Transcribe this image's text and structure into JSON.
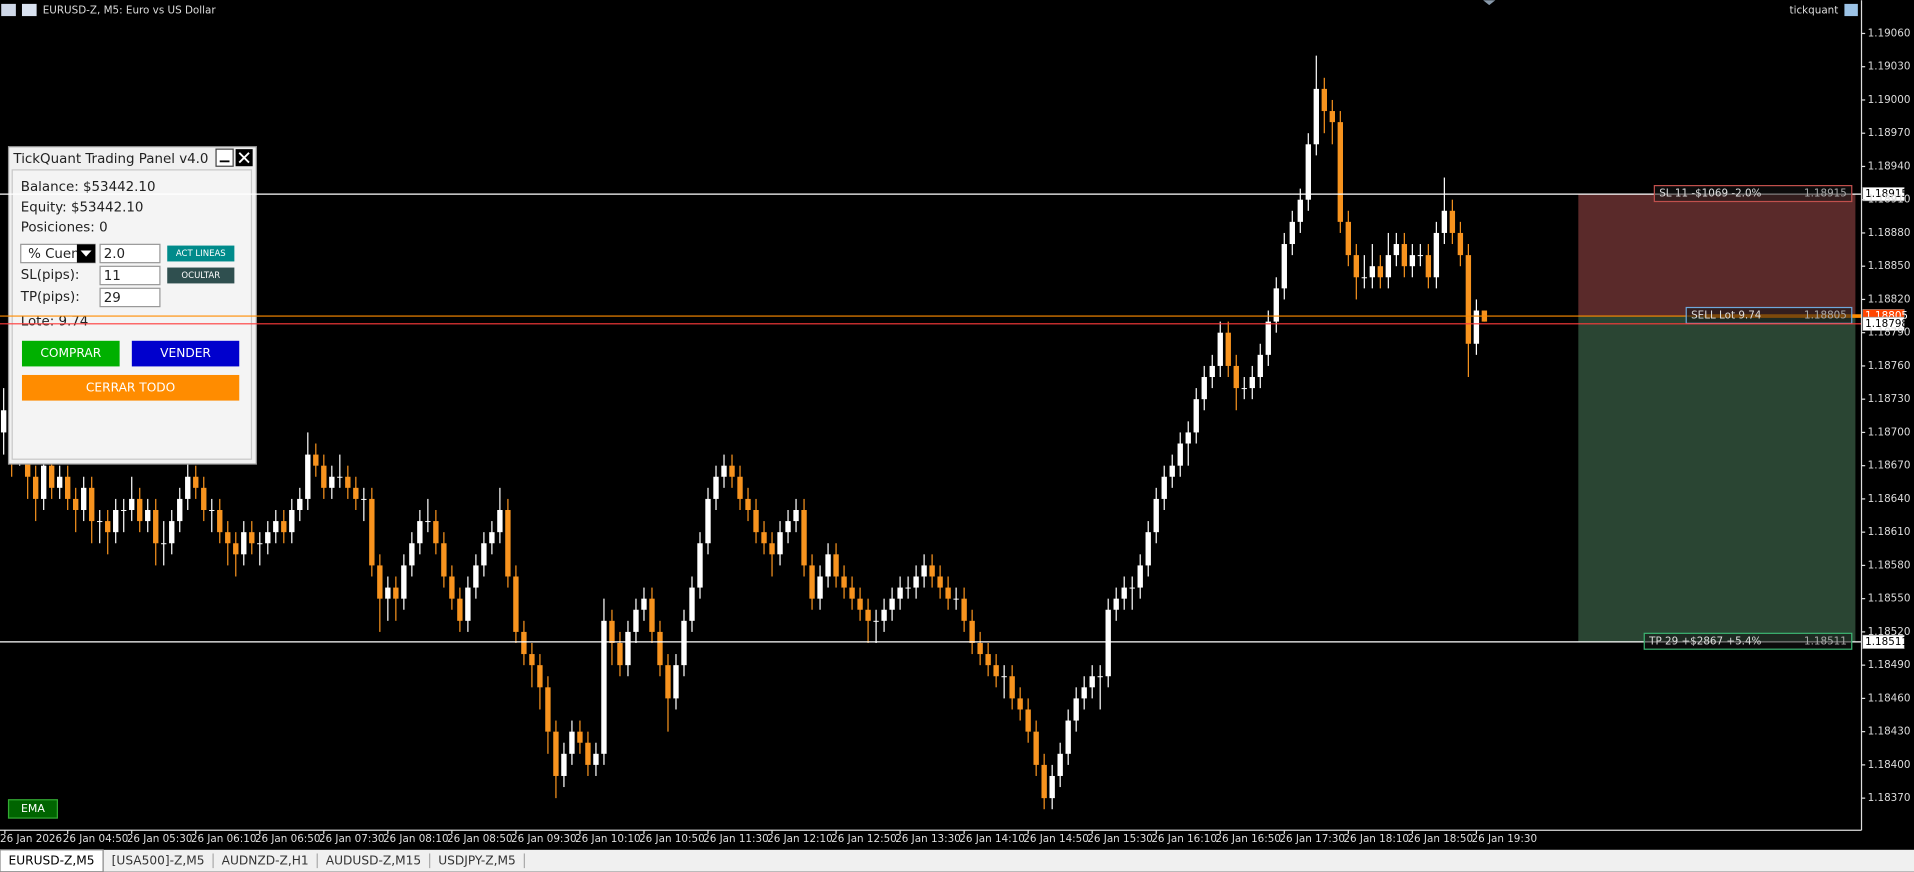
{
  "window": {
    "title": "EURUSD-Z, M5:  Euro vs US Dollar",
    "user": "tickquant"
  },
  "chart_data": {
    "type": "candlestick",
    "up_color": "#ffffff",
    "down_color": "#f7931e",
    "ylim": [
      1.18341,
      1.1909
    ],
    "yticks": [
      {
        "value": 1.1906,
        "label": "1.19060"
      },
      {
        "value": 1.1903,
        "label": "1.19030"
      },
      {
        "value": 1.19,
        "label": "1.19000"
      },
      {
        "value": 1.1897,
        "label": "1.18970"
      },
      {
        "value": 1.1894,
        "label": "1.18940"
      },
      {
        "value": 1.1891,
        "label": "1.18910"
      },
      {
        "value": 1.1888,
        "label": "1.18880"
      },
      {
        "value": 1.1885,
        "label": "1.18850"
      },
      {
        "value": 1.1882,
        "label": "1.18820"
      },
      {
        "value": 1.1879,
        "label": "1.18790"
      },
      {
        "value": 1.1876,
        "label": "1.18760"
      },
      {
        "value": 1.1873,
        "label": "1.18730"
      },
      {
        "value": 1.187,
        "label": "1.18700"
      },
      {
        "value": 1.1867,
        "label": "1.18670"
      },
      {
        "value": 1.1864,
        "label": "1.18640"
      },
      {
        "value": 1.1861,
        "label": "1.18610"
      },
      {
        "value": 1.1858,
        "label": "1.18580"
      },
      {
        "value": 1.1855,
        "label": "1.18550"
      },
      {
        "value": 1.1852,
        "label": "1.18520"
      },
      {
        "value": 1.1849,
        "label": "1.18490"
      },
      {
        "value": 1.1846,
        "label": "1.18460"
      },
      {
        "value": 1.1843,
        "label": "1.18430"
      },
      {
        "value": 1.184,
        "label": "1.18400"
      },
      {
        "value": 1.1837,
        "label": "1.18370"
      }
    ],
    "x_labels": [
      "26 Jan 2026",
      "26 Jan 04:50",
      "26 Jan 05:30",
      "26 Jan 06:10",
      "26 Jan 06:50",
      "26 Jan 07:30",
      "26 Jan 08:10",
      "26 Jan 08:50",
      "26 Jan 09:30",
      "26 Jan 10:10",
      "26 Jan 10:50",
      "26 Jan 11:30",
      "26 Jan 12:10",
      "26 Jan 12:50",
      "26 Jan 13:30",
      "26 Jan 14:10",
      "26 Jan 14:50",
      "26 Jan 15:30",
      "26 Jan 16:10",
      "26 Jan 16:50",
      "26 Jan 17:30",
      "26 Jan 18:10",
      "26 Jan 18:50",
      "26 Jan 19:30"
    ],
    "levels": [
      {
        "value": 1.18915,
        "label": "1.18915",
        "text": "SL 11 -$1069 -2.0%",
        "color": "#ffffff",
        "tag_color": "#c0504d",
        "axis_box": "#ffffff"
      },
      {
        "value": 1.18805,
        "label": "1.18805",
        "text": "SELL Lot 9.74",
        "color": "#ff8c00",
        "tag_color": "#6fa8dc",
        "axis_box": "#ff4500"
      },
      {
        "value": 1.18798,
        "label": "1.18798",
        "color": "#ff3b3b",
        "axis_box": "#ffffff"
      },
      {
        "value": 1.18511,
        "label": "1.18511",
        "text": "TP 29 +$2867 +5.4%",
        "color": "#ffffff",
        "tag_color": "#3cb371",
        "axis_box": "#ffffff"
      }
    ],
    "zone_colors": [
      "rgba(150,70,70,0.6)",
      "rgba(70,115,85,0.6)"
    ],
    "ohlc": [
      [
        1.187,
        1.1874,
        1.1868,
        1.1872
      ],
      [
        1.1872,
        1.1873,
        1.1866,
        1.1868
      ],
      [
        1.1868,
        1.1872,
        1.1867,
        1.187
      ],
      [
        1.187,
        1.1871,
        1.1864,
        1.1866
      ],
      [
        1.1866,
        1.1867,
        1.1862,
        1.1864
      ],
      [
        1.1864,
        1.1868,
        1.1863,
        1.1867
      ],
      [
        1.1867,
        1.1868,
        1.1864,
        1.1865
      ],
      [
        1.1865,
        1.1867,
        1.1864,
        1.1866
      ],
      [
        1.1866,
        1.1867,
        1.1863,
        1.1864
      ],
      [
        1.1864,
        1.1865,
        1.1861,
        1.1863
      ],
      [
        1.1863,
        1.1866,
        1.1862,
        1.1865
      ],
      [
        1.1865,
        1.1866,
        1.186,
        1.1862
      ],
      [
        1.1862,
        1.1863,
        1.186,
        1.1862
      ],
      [
        1.1862,
        1.1863,
        1.1859,
        1.1861
      ],
      [
        1.1861,
        1.1864,
        1.186,
        1.1863
      ],
      [
        1.1863,
        1.1864,
        1.1861,
        1.1863
      ],
      [
        1.1863,
        1.1866,
        1.1862,
        1.1864
      ],
      [
        1.1864,
        1.1865,
        1.1861,
        1.1862
      ],
      [
        1.1862,
        1.1864,
        1.1861,
        1.1863
      ],
      [
        1.1863,
        1.1864,
        1.1858,
        1.186
      ],
      [
        1.186,
        1.1862,
        1.1858,
        1.186
      ],
      [
        1.186,
        1.1863,
        1.1859,
        1.1862
      ],
      [
        1.1862,
        1.1865,
        1.1861,
        1.1864
      ],
      [
        1.1864,
        1.1869,
        1.1863,
        1.1866
      ],
      [
        1.1866,
        1.1867,
        1.1864,
        1.1865
      ],
      [
        1.1865,
        1.1866,
        1.1862,
        1.1863
      ],
      [
        1.1863,
        1.1864,
        1.1861,
        1.1863
      ],
      [
        1.1863,
        1.1864,
        1.186,
        1.1861
      ],
      [
        1.1861,
        1.1862,
        1.1858,
        1.186
      ],
      [
        1.186,
        1.1861,
        1.1857,
        1.1859
      ],
      [
        1.1859,
        1.1862,
        1.1858,
        1.1861
      ],
      [
        1.1861,
        1.1862,
        1.1859,
        1.186
      ],
      [
        1.186,
        1.1861,
        1.1858,
        1.186
      ],
      [
        1.186,
        1.1862,
        1.1859,
        1.1861
      ],
      [
        1.1861,
        1.1863,
        1.186,
        1.1862
      ],
      [
        1.1862,
        1.1863,
        1.186,
        1.1861
      ],
      [
        1.1861,
        1.1864,
        1.186,
        1.1863
      ],
      [
        1.1863,
        1.1865,
        1.1862,
        1.1864
      ],
      [
        1.1864,
        1.187,
        1.1863,
        1.1868
      ],
      [
        1.1868,
        1.1869,
        1.1866,
        1.1867
      ],
      [
        1.1867,
        1.1868,
        1.1864,
        1.1865
      ],
      [
        1.1865,
        1.1867,
        1.1864,
        1.1866
      ],
      [
        1.1866,
        1.1868,
        1.1865,
        1.1866
      ],
      [
        1.1866,
        1.1867,
        1.1864,
        1.1865
      ],
      [
        1.1865,
        1.1866,
        1.1863,
        1.1864
      ],
      [
        1.1864,
        1.1865,
        1.1862,
        1.1864
      ],
      [
        1.1864,
        1.1865,
        1.1857,
        1.1858
      ],
      [
        1.1858,
        1.1859,
        1.1852,
        1.1855
      ],
      [
        1.1855,
        1.1857,
        1.1853,
        1.1856
      ],
      [
        1.1856,
        1.1857,
        1.1853,
        1.1855
      ],
      [
        1.1855,
        1.1859,
        1.1854,
        1.1858
      ],
      [
        1.1858,
        1.1861,
        1.1857,
        1.186
      ],
      [
        1.186,
        1.1863,
        1.1859,
        1.1862
      ],
      [
        1.1862,
        1.1864,
        1.1861,
        1.1862
      ],
      [
        1.1862,
        1.1863,
        1.1859,
        1.186
      ],
      [
        1.186,
        1.1861,
        1.1856,
        1.1857
      ],
      [
        1.1857,
        1.1858,
        1.1854,
        1.1855
      ],
      [
        1.1855,
        1.1856,
        1.1852,
        1.1853
      ],
      [
        1.1853,
        1.1857,
        1.1852,
        1.1856
      ],
      [
        1.1856,
        1.1859,
        1.1855,
        1.1858
      ],
      [
        1.1858,
        1.1861,
        1.1857,
        1.186
      ],
      [
        1.186,
        1.1862,
        1.1859,
        1.1861
      ],
      [
        1.1861,
        1.1865,
        1.186,
        1.1863
      ],
      [
        1.1863,
        1.1864,
        1.1856,
        1.1857
      ],
      [
        1.1857,
        1.1858,
        1.1851,
        1.1852
      ],
      [
        1.1852,
        1.1853,
        1.1849,
        1.185
      ],
      [
        1.185,
        1.1851,
        1.1847,
        1.1849
      ],
      [
        1.1849,
        1.185,
        1.1845,
        1.1847
      ],
      [
        1.1847,
        1.1848,
        1.1841,
        1.1843
      ],
      [
        1.1843,
        1.1844,
        1.1837,
        1.1839
      ],
      [
        1.1839,
        1.1842,
        1.1838,
        1.1841
      ],
      [
        1.1841,
        1.1844,
        1.184,
        1.1843
      ],
      [
        1.1843,
        1.1844,
        1.1841,
        1.1842
      ],
      [
        1.1842,
        1.1843,
        1.1839,
        1.184
      ],
      [
        1.184,
        1.1842,
        1.1839,
        1.1841
      ],
      [
        1.1841,
        1.1855,
        1.184,
        1.1853
      ],
      [
        1.1853,
        1.1854,
        1.1849,
        1.1851
      ],
      [
        1.1851,
        1.1852,
        1.1848,
        1.1849
      ],
      [
        1.1849,
        1.1853,
        1.1848,
        1.1852
      ],
      [
        1.1852,
        1.1855,
        1.1851,
        1.1854
      ],
      [
        1.1854,
        1.1856,
        1.1853,
        1.1855
      ],
      [
        1.1855,
        1.1856,
        1.1851,
        1.1852
      ],
      [
        1.1852,
        1.1853,
        1.1848,
        1.1849
      ],
      [
        1.1849,
        1.185,
        1.1843,
        1.1846
      ],
      [
        1.1846,
        1.185,
        1.1845,
        1.1849
      ],
      [
        1.1849,
        1.1854,
        1.1848,
        1.1853
      ],
      [
        1.1853,
        1.1857,
        1.1852,
        1.1856
      ],
      [
        1.1856,
        1.1861,
        1.1855,
        1.186
      ],
      [
        1.186,
        1.1865,
        1.1859,
        1.1864
      ],
      [
        1.1864,
        1.1867,
        1.1863,
        1.1866
      ],
      [
        1.1866,
        1.1868,
        1.1865,
        1.1867
      ],
      [
        1.1867,
        1.1868,
        1.1865,
        1.1866
      ],
      [
        1.1866,
        1.1867,
        1.1863,
        1.1864
      ],
      [
        1.1864,
        1.1865,
        1.1862,
        1.1863
      ],
      [
        1.1863,
        1.1864,
        1.186,
        1.1861
      ],
      [
        1.1861,
        1.1862,
        1.1859,
        1.186
      ],
      [
        1.186,
        1.1861,
        1.1857,
        1.1859
      ],
      [
        1.1859,
        1.1862,
        1.1858,
        1.1861
      ],
      [
        1.1861,
        1.1863,
        1.186,
        1.1862
      ],
      [
        1.1862,
        1.1864,
        1.1861,
        1.1863
      ],
      [
        1.1863,
        1.1864,
        1.1857,
        1.1858
      ],
      [
        1.1858,
        1.1859,
        1.1854,
        1.1855
      ],
      [
        1.1855,
        1.1858,
        1.1854,
        1.1857
      ],
      [
        1.1857,
        1.186,
        1.1856,
        1.1859
      ],
      [
        1.1859,
        1.186,
        1.1856,
        1.1857
      ],
      [
        1.1857,
        1.1858,
        1.1855,
        1.1856
      ],
      [
        1.1856,
        1.1857,
        1.1854,
        1.1855
      ],
      [
        1.1855,
        1.1856,
        1.1853,
        1.1854
      ],
      [
        1.1854,
        1.1855,
        1.1851,
        1.1853
      ],
      [
        1.1853,
        1.1854,
        1.1851,
        1.1853
      ],
      [
        1.1853,
        1.1855,
        1.1852,
        1.1854
      ],
      [
        1.1854,
        1.1856,
        1.1853,
        1.1855
      ],
      [
        1.1855,
        1.1857,
        1.1854,
        1.1856
      ],
      [
        1.1856,
        1.1857,
        1.1855,
        1.1856
      ],
      [
        1.1856,
        1.1858,
        1.1855,
        1.1857
      ],
      [
        1.1857,
        1.1859,
        1.1856,
        1.1858
      ],
      [
        1.1858,
        1.1859,
        1.1856,
        1.1857
      ],
      [
        1.1857,
        1.1858,
        1.1855,
        1.1856
      ],
      [
        1.1856,
        1.1857,
        1.1854,
        1.1855
      ],
      [
        1.1855,
        1.1856,
        1.1854,
        1.1855
      ],
      [
        1.1855,
        1.1856,
        1.1852,
        1.1853
      ],
      [
        1.1853,
        1.1854,
        1.185,
        1.1851
      ],
      [
        1.1851,
        1.1852,
        1.1849,
        1.185
      ],
      [
        1.185,
        1.1851,
        1.1848,
        1.1849
      ],
      [
        1.1849,
        1.185,
        1.1847,
        1.1848
      ],
      [
        1.1848,
        1.1849,
        1.1846,
        1.1848
      ],
      [
        1.1848,
        1.1849,
        1.1845,
        1.1846
      ],
      [
        1.1846,
        1.1847,
        1.1844,
        1.1845
      ],
      [
        1.1845,
        1.1846,
        1.1842,
        1.1843
      ],
      [
        1.1843,
        1.1844,
        1.1839,
        1.184
      ],
      [
        1.184,
        1.1841,
        1.1836,
        1.1837
      ],
      [
        1.1837,
        1.184,
        1.1836,
        1.1839
      ],
      [
        1.1839,
        1.1842,
        1.1838,
        1.1841
      ],
      [
        1.1841,
        1.1845,
        1.184,
        1.1844
      ],
      [
        1.1844,
        1.1847,
        1.1843,
        1.1846
      ],
      [
        1.1846,
        1.1848,
        1.1845,
        1.1847
      ],
      [
        1.1847,
        1.1849,
        1.1846,
        1.1848
      ],
      [
        1.1848,
        1.1849,
        1.1845,
        1.1848
      ],
      [
        1.1848,
        1.1855,
        1.1847,
        1.1854
      ],
      [
        1.1854,
        1.1856,
        1.1853,
        1.1855
      ],
      [
        1.1855,
        1.1857,
        1.1854,
        1.1856
      ],
      [
        1.1856,
        1.1857,
        1.1854,
        1.1856
      ],
      [
        1.1856,
        1.1859,
        1.1855,
        1.1858
      ],
      [
        1.1858,
        1.1862,
        1.1857,
        1.1861
      ],
      [
        1.1861,
        1.1865,
        1.186,
        1.1864
      ],
      [
        1.1864,
        1.1867,
        1.1863,
        1.1866
      ],
      [
        1.1866,
        1.1868,
        1.1865,
        1.1867
      ],
      [
        1.1867,
        1.187,
        1.1866,
        1.1869
      ],
      [
        1.1869,
        1.1871,
        1.1867,
        1.187
      ],
      [
        1.187,
        1.1874,
        1.1869,
        1.1873
      ],
      [
        1.1873,
        1.1876,
        1.1872,
        1.1875
      ],
      [
        1.1875,
        1.1877,
        1.1874,
        1.1876
      ],
      [
        1.1876,
        1.188,
        1.1875,
        1.1879
      ],
      [
        1.1879,
        1.188,
        1.1875,
        1.1876
      ],
      [
        1.1876,
        1.1877,
        1.1872,
        1.1874
      ],
      [
        1.1874,
        1.1875,
        1.1873,
        1.1874
      ],
      [
        1.1874,
        1.1876,
        1.1873,
        1.1875
      ],
      [
        1.1875,
        1.1878,
        1.1874,
        1.1877
      ],
      [
        1.1877,
        1.1881,
        1.1876,
        1.188
      ],
      [
        1.188,
        1.1884,
        1.1879,
        1.1883
      ],
      [
        1.1883,
        1.1888,
        1.1882,
        1.1887
      ],
      [
        1.1887,
        1.189,
        1.1886,
        1.1889
      ],
      [
        1.1889,
        1.1892,
        1.1888,
        1.1891
      ],
      [
        1.1891,
        1.1897,
        1.189,
        1.1896
      ],
      [
        1.1896,
        1.1904,
        1.1895,
        1.1901
      ],
      [
        1.1901,
        1.1902,
        1.1897,
        1.1899
      ],
      [
        1.1899,
        1.19,
        1.1896,
        1.1898
      ],
      [
        1.1898,
        1.1899,
        1.1888,
        1.1889
      ],
      [
        1.1889,
        1.189,
        1.1885,
        1.1886
      ],
      [
        1.1886,
        1.1887,
        1.1882,
        1.1884
      ],
      [
        1.1884,
        1.1886,
        1.1883,
        1.1884
      ],
      [
        1.1884,
        1.1887,
        1.1883,
        1.1885
      ],
      [
        1.1885,
        1.1886,
        1.1883,
        1.1884
      ],
      [
        1.1884,
        1.1888,
        1.1883,
        1.1886
      ],
      [
        1.1886,
        1.1888,
        1.1885,
        1.1887
      ],
      [
        1.1887,
        1.1888,
        1.1884,
        1.1885
      ],
      [
        1.1885,
        1.1887,
        1.1884,
        1.1886
      ],
      [
        1.1886,
        1.1887,
        1.1885,
        1.1886
      ],
      [
        1.1886,
        1.1887,
        1.1883,
        1.1884
      ],
      [
        1.1884,
        1.1889,
        1.1883,
        1.1888
      ],
      [
        1.1888,
        1.1893,
        1.1887,
        1.189
      ],
      [
        1.189,
        1.1891,
        1.1887,
        1.1888
      ],
      [
        1.1888,
        1.1889,
        1.1885,
        1.1886
      ],
      [
        1.1886,
        1.1887,
        1.1875,
        1.1878
      ],
      [
        1.1878,
        1.1882,
        1.1877,
        1.1881
      ],
      [
        1.1881,
        1.1881,
        1.188,
        1.188
      ]
    ]
  },
  "panel": {
    "title": "TickQuant Trading Panel v4.0",
    "balance": "Balance: $53442.10",
    "equity": "Equity: $53442.10",
    "positions": "Posiciones: 0",
    "risk_mode": "% Cuent",
    "risk": "2.0",
    "sl_label": "SL(pips):",
    "sl": "11",
    "tp_label": "TP(pips):",
    "tp": "29",
    "lot": "Lote: 9.74",
    "act_lines": "ACT LINEAS",
    "hide": "OCULTAR",
    "buy": "COMPRAR",
    "sell": "VENDER",
    "close_all": "CERRAR TODO"
  },
  "ema_button": "EMA",
  "tabs": [
    "EURUSD-Z,M5",
    "[USA500]-Z,M5",
    "AUDNZD-Z,H1",
    "AUDUSD-Z,M15",
    "USDJPY-Z,M5"
  ]
}
